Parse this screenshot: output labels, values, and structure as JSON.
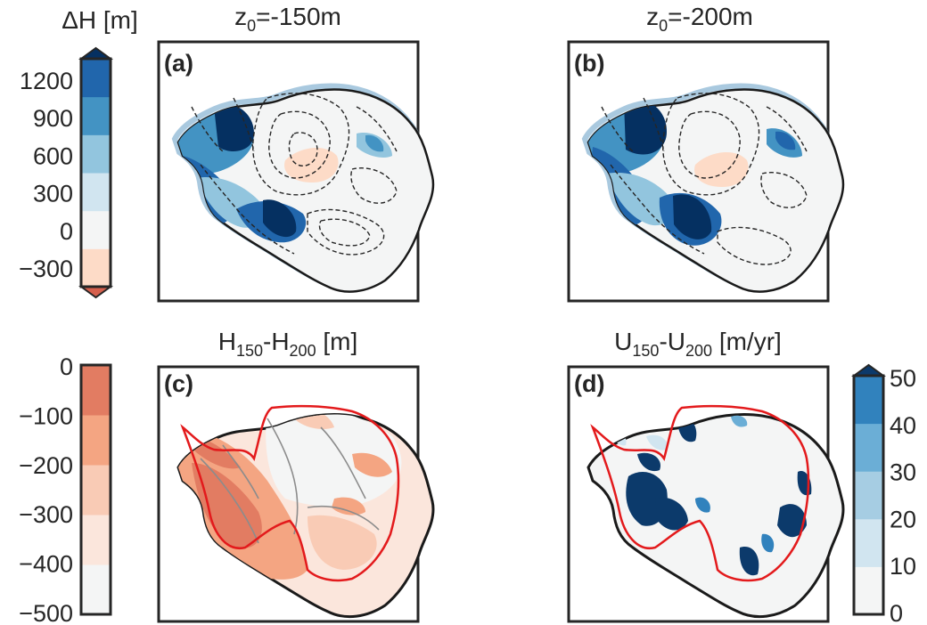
{
  "chart_data": [
    {
      "type": "heatmap",
      "panel": "(a)",
      "title_main": "z",
      "title_sub": "0",
      "title_tail": "=-150m",
      "colorbar": {
        "label": "ΔH [m]",
        "ticks": [
          "1200",
          "900",
          "600",
          "300",
          "0",
          "−300"
        ],
        "levels": [
          -450,
          -300,
          0,
          300,
          600,
          900,
          1200,
          1400
        ],
        "colors": [
          "#fddbc7",
          "#f4f5f5",
          "#d1e5f0",
          "#92c5de",
          "#4393c3",
          "#2166ac"
        ],
        "extend_top_color": "#053061",
        "extend_bottom_color": "#d6604d"
      }
    },
    {
      "type": "heatmap",
      "panel": "(b)",
      "title_main": "z",
      "title_sub": "0",
      "title_tail": "=-200m"
    },
    {
      "type": "heatmap",
      "panel": "(c)",
      "title_parts": [
        {
          "text": "H",
          "sub": "150"
        },
        {
          "text": "-H",
          "sub": "200"
        },
        {
          "text": " [m]",
          "sub": ""
        }
      ],
      "colorbar": {
        "ticks": [
          "0",
          "−100",
          "−200",
          "−300",
          "−400",
          "−500"
        ],
        "levels": [
          -500,
          -400,
          -300,
          -200,
          -100,
          0
        ],
        "colors": [
          "#f4f5f5",
          "#fbe6dc",
          "#f9cbb5",
          "#f4a582",
          "#e27c62"
        ]
      }
    },
    {
      "type": "heatmap",
      "panel": "(d)",
      "title_parts": [
        {
          "text": "U",
          "sub": "150"
        },
        {
          "text": "-U",
          "sub": "200"
        },
        {
          "text": " [m/yr]",
          "sub": ""
        }
      ],
      "colorbar": {
        "ticks": [
          "50",
          "40",
          "30",
          "20",
          "10",
          "0"
        ],
        "levels": [
          0,
          10,
          20,
          30,
          40,
          50
        ],
        "colors": [
          "#f4f5f5",
          "#d1e5f0",
          "#a6cde3",
          "#6baed6",
          "#3182bd"
        ],
        "extend_top_color": "#0c3a6b"
      }
    }
  ]
}
